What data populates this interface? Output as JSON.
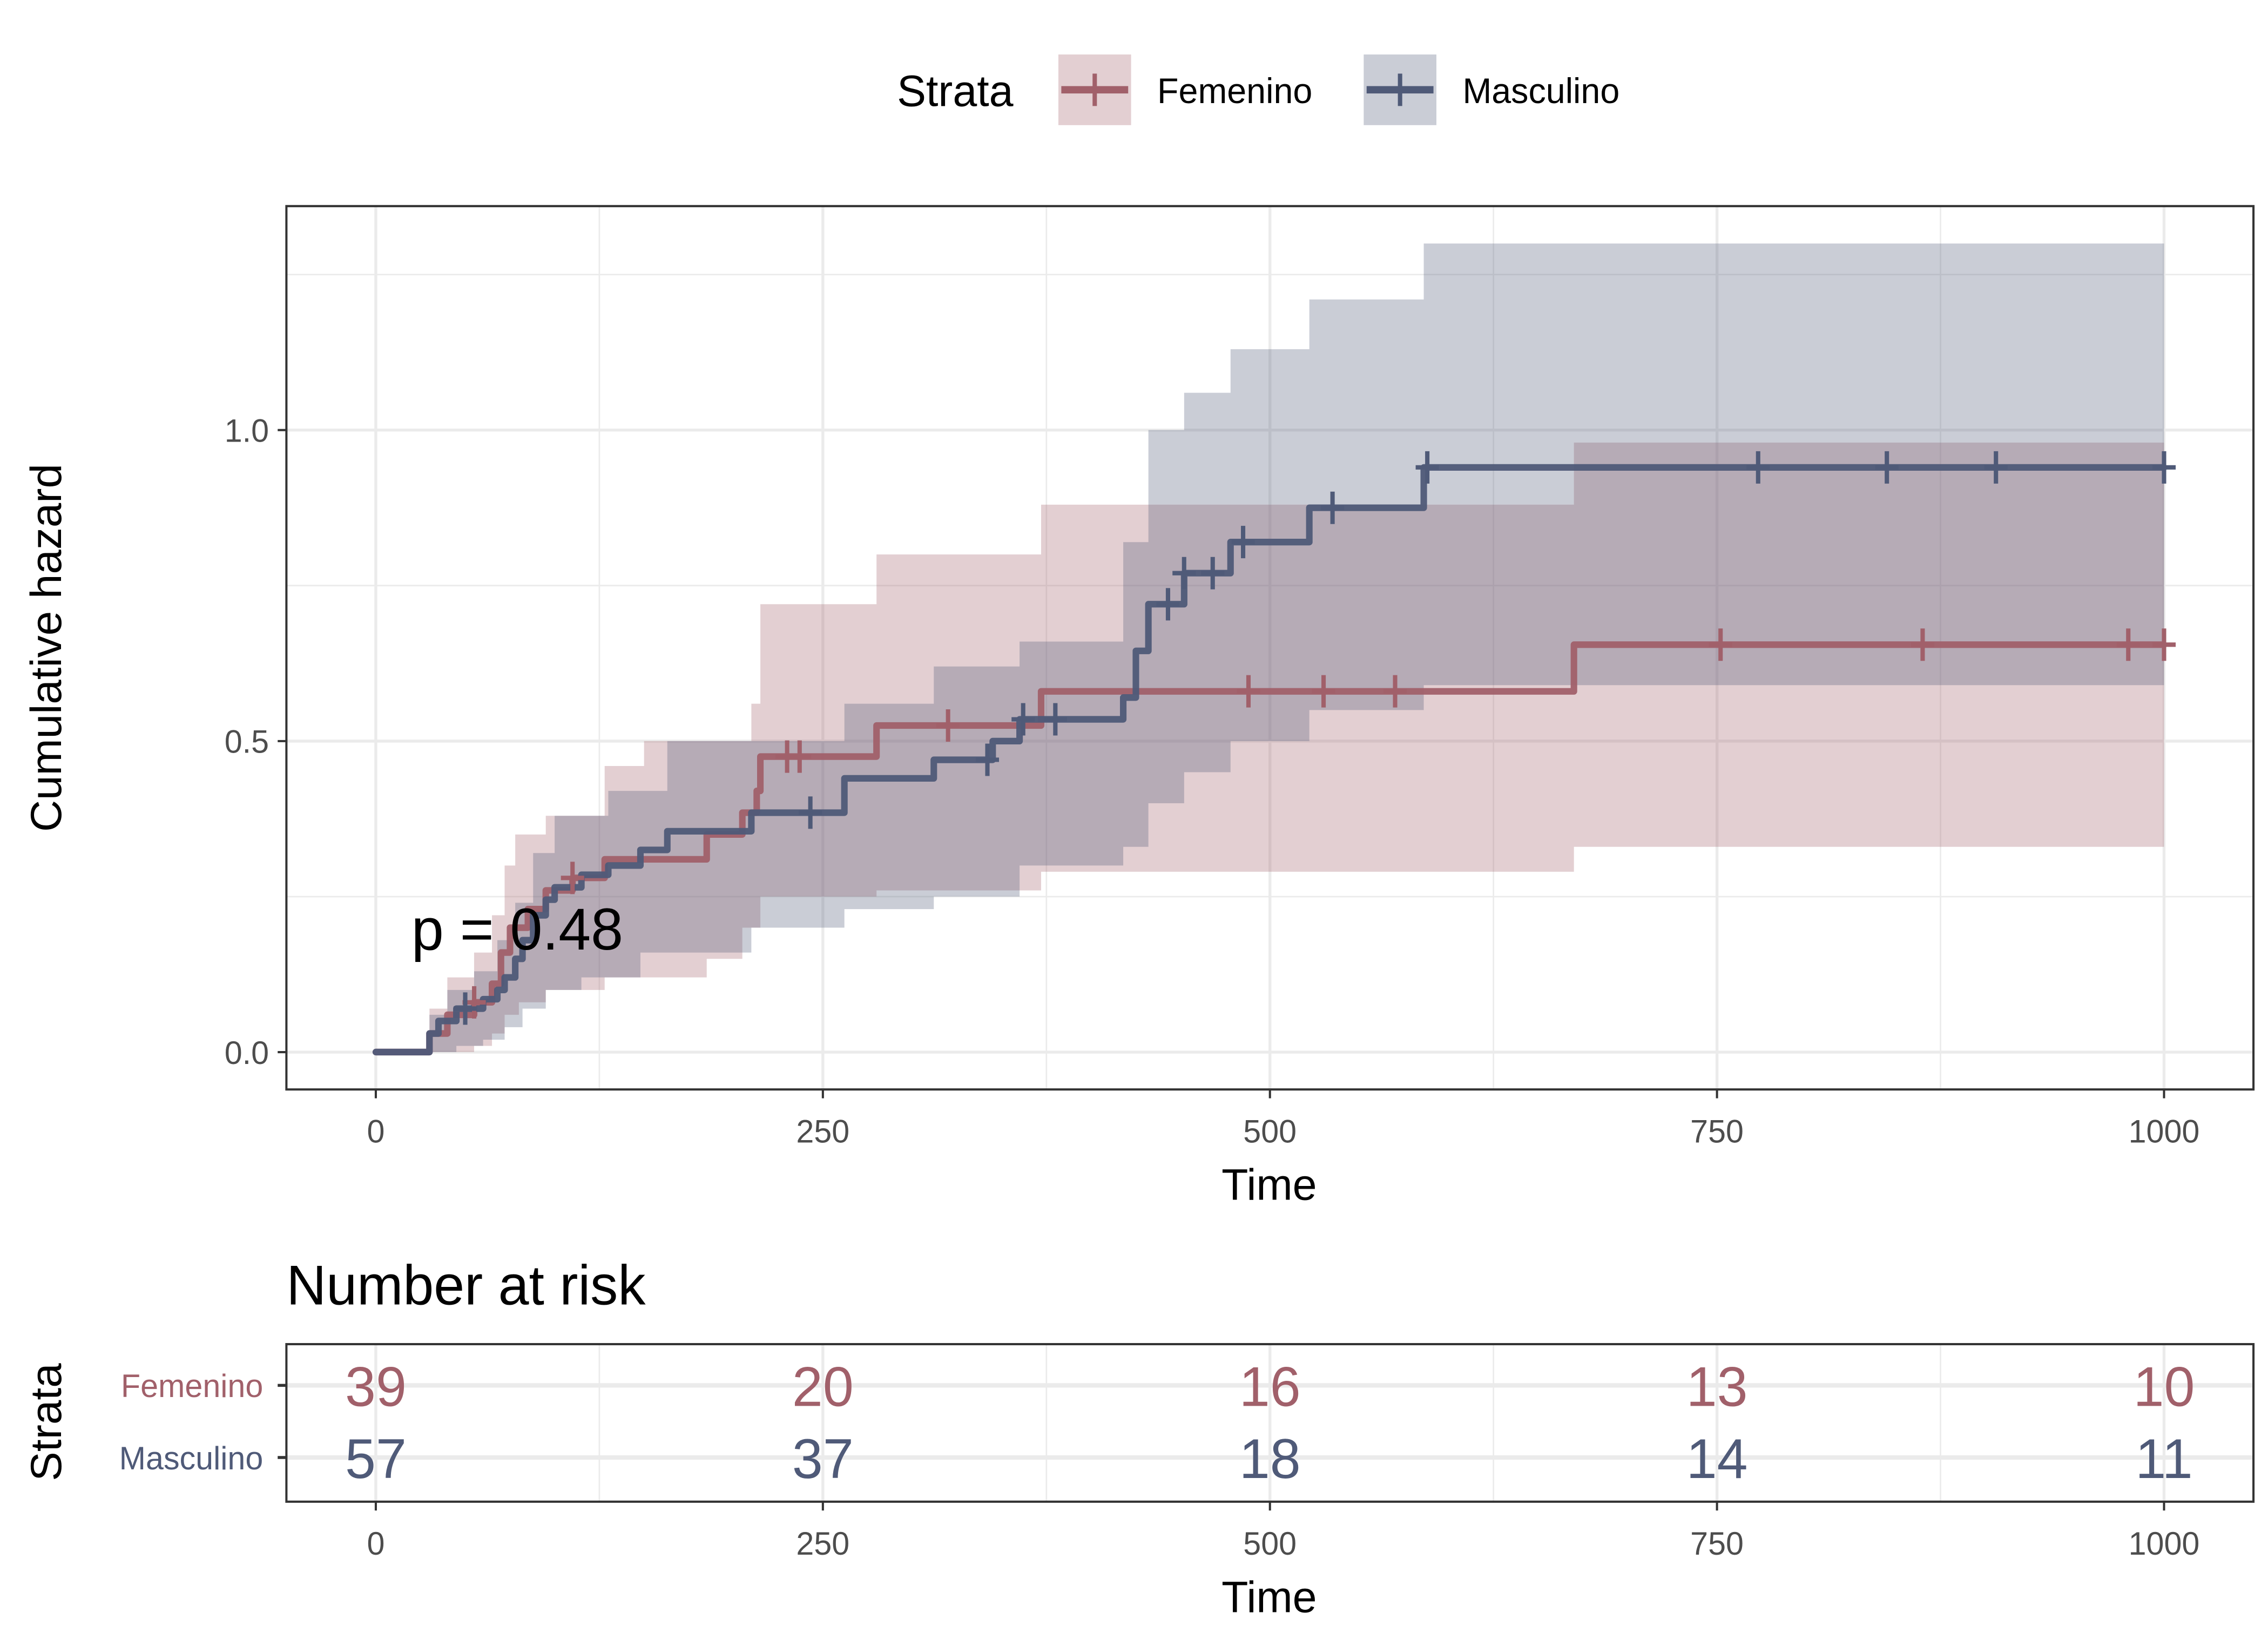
{
  "chart_data": {
    "type": "line",
    "subtype": "cumulative-hazard-step",
    "legend": {
      "title": "Strata",
      "position": "top",
      "entries": [
        "Femenino",
        "Masculino"
      ]
    },
    "xlabel": "Time",
    "ylabel": "Cumulative hazard",
    "xlim": [
      -50,
      1050
    ],
    "ylim": [
      -0.06,
      1.36
    ],
    "x_ticks": [
      0,
      250,
      500,
      750,
      1000
    ],
    "x_tick_labels": [
      "0",
      "250",
      "500",
      "750",
      "1000"
    ],
    "y_ticks": [
      0.0,
      0.5,
      1.0
    ],
    "y_tick_labels": [
      "0.0",
      "0.5",
      "1.0"
    ],
    "grid": true,
    "annotation": "p = 0.48",
    "colors": {
      "Femenino": "#A1606A",
      "Masculino": "#4F5A78",
      "Femenino_band": "#A1606A",
      "Masculino_band": "#4F5A78"
    },
    "series": [
      {
        "name": "Femenino",
        "steps": [
          [
            0,
            0
          ],
          [
            30,
            0.03
          ],
          [
            40,
            0.06
          ],
          [
            55,
            0.08
          ],
          [
            65,
            0.11
          ],
          [
            70,
            0.16
          ],
          [
            75,
            0.2
          ],
          [
            85,
            0.23
          ],
          [
            95,
            0.26
          ],
          [
            110,
            0.28
          ],
          [
            128,
            0.31
          ],
          [
            185,
            0.35
          ],
          [
            205,
            0.385
          ],
          [
            213,
            0.42
          ],
          [
            215,
            0.475
          ],
          [
            280,
            0.525
          ],
          [
            372,
            0.58
          ],
          [
            670,
            0.655
          ]
        ],
        "end_time": 1000,
        "censor_times": [
          55,
          110,
          230,
          237,
          320,
          488,
          530,
          570,
          752,
          865,
          980,
          1000
        ],
        "ci_upper": [
          [
            0,
            0
          ],
          [
            30,
            0.07
          ],
          [
            40,
            0.12
          ],
          [
            55,
            0.16
          ],
          [
            65,
            0.22
          ],
          [
            72,
            0.3
          ],
          [
            78,
            0.35
          ],
          [
            95,
            0.38
          ],
          [
            128,
            0.46
          ],
          [
            150,
            0.5
          ],
          [
            210,
            0.56
          ],
          [
            215,
            0.72
          ],
          [
            280,
            0.8
          ],
          [
            372,
            0.88
          ],
          [
            430,
            0.88
          ],
          [
            670,
            0.98
          ]
        ],
        "ci_lower": [
          [
            0,
            0
          ],
          [
            30,
            0
          ],
          [
            55,
            0.01
          ],
          [
            65,
            0.03
          ],
          [
            72,
            0.06
          ],
          [
            80,
            0.08
          ],
          [
            95,
            0.1
          ],
          [
            128,
            0.12
          ],
          [
            185,
            0.15
          ],
          [
            205,
            0.2
          ],
          [
            215,
            0.25
          ],
          [
            280,
            0.26
          ],
          [
            372,
            0.29
          ],
          [
            670,
            0.33
          ]
        ]
      },
      {
        "name": "Masculino",
        "steps": [
          [
            0,
            0
          ],
          [
            30,
            0.03
          ],
          [
            35,
            0.05
          ],
          [
            45,
            0.07
          ],
          [
            60,
            0.085
          ],
          [
            68,
            0.1
          ],
          [
            72,
            0.12
          ],
          [
            78,
            0.15
          ],
          [
            82,
            0.18
          ],
          [
            88,
            0.22
          ],
          [
            95,
            0.245
          ],
          [
            100,
            0.265
          ],
          [
            115,
            0.285
          ],
          [
            130,
            0.3
          ],
          [
            148,
            0.325
          ],
          [
            163,
            0.355
          ],
          [
            210,
            0.385
          ],
          [
            262,
            0.44
          ],
          [
            312,
            0.47
          ],
          [
            345,
            0.5
          ],
          [
            360,
            0.535
          ],
          [
            418,
            0.57
          ],
          [
            425,
            0.645
          ],
          [
            432,
            0.72
          ],
          [
            452,
            0.77
          ],
          [
            478,
            0.82
          ],
          [
            522,
            0.875
          ],
          [
            586,
            0.94
          ]
        ],
        "end_time": 1000,
        "censor_times": [
          50,
          243,
          342,
          362,
          380,
          443,
          452,
          468,
          485,
          535,
          588,
          773,
          845,
          906,
          1000
        ],
        "ci_upper": [
          [
            0,
            0
          ],
          [
            30,
            0.06
          ],
          [
            40,
            0.1
          ],
          [
            55,
            0.13
          ],
          [
            68,
            0.18
          ],
          [
            78,
            0.24
          ],
          [
            88,
            0.32
          ],
          [
            100,
            0.38
          ],
          [
            130,
            0.42
          ],
          [
            163,
            0.5
          ],
          [
            210,
            0.5
          ],
          [
            262,
            0.56
          ],
          [
            312,
            0.62
          ],
          [
            360,
            0.66
          ],
          [
            418,
            0.82
          ],
          [
            432,
            1.0
          ],
          [
            452,
            1.06
          ],
          [
            478,
            1.13
          ],
          [
            522,
            1.21
          ],
          [
            586,
            1.3
          ]
        ],
        "ci_lower": [
          [
            0,
            0
          ],
          [
            30,
            0
          ],
          [
            45,
            0.01
          ],
          [
            60,
            0.02
          ],
          [
            72,
            0.04
          ],
          [
            82,
            0.07
          ],
          [
            95,
            0.1
          ],
          [
            115,
            0.12
          ],
          [
            148,
            0.16
          ],
          [
            210,
            0.2
          ],
          [
            262,
            0.23
          ],
          [
            312,
            0.25
          ],
          [
            360,
            0.3
          ],
          [
            418,
            0.33
          ],
          [
            432,
            0.4
          ],
          [
            452,
            0.45
          ],
          [
            478,
            0.5
          ],
          [
            522,
            0.55
          ],
          [
            586,
            0.59
          ]
        ]
      }
    ],
    "risk_table": {
      "title": "Number at risk",
      "ylabel": "Strata",
      "xlabel": "Time",
      "times": [
        0,
        250,
        500,
        750,
        1000
      ],
      "rows": [
        {
          "name": "Femenino",
          "values": [
            39,
            20,
            16,
            13,
            10
          ]
        },
        {
          "name": "Masculino",
          "values": [
            57,
            37,
            18,
            14,
            11
          ]
        }
      ]
    }
  }
}
